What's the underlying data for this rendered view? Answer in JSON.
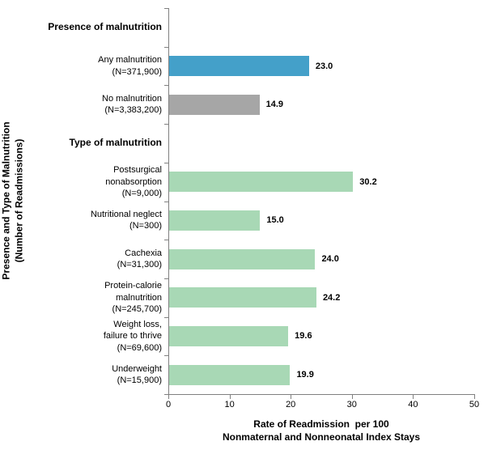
{
  "chart_data": {
    "type": "bar",
    "orientation": "horizontal",
    "xlabel": "Rate of Readmission  per 100\nNonmaternal and Nonneonatal Index Stays",
    "ylabel": "Presence and Type of Malnutrition\n(Number of Readmissions)",
    "xlim": [
      0,
      50
    ],
    "xticks": [
      0,
      10,
      20,
      30,
      40,
      50
    ],
    "grid": false,
    "legend": false,
    "axis_color": "#808080",
    "bar_colors": {
      "any_malnutrition": "#44A0C9",
      "no_malnutrition": "#A6A6A6",
      "type_of_malnutrition": "#A8D8B5"
    },
    "rows": [
      {
        "kind": "section",
        "label": "Presence of malnutrition"
      },
      {
        "kind": "bar",
        "label": "Any malnutrition\n(N=371,900)",
        "value": 23.0,
        "value_label": "23.0",
        "color": "#44A0C9"
      },
      {
        "kind": "bar",
        "label": "No malnutrition\n(N=3,383,200)",
        "value": 14.9,
        "value_label": "14.9",
        "color": "#A6A6A6"
      },
      {
        "kind": "section",
        "label": "Type of malnutrition"
      },
      {
        "kind": "bar",
        "label": "Postsurgical\nnonabsorption\n(N=9,000)",
        "value": 30.2,
        "value_label": "30.2",
        "color": "#A8D8B5"
      },
      {
        "kind": "bar",
        "label": "Nutritional neglect\n(N=300)",
        "value": 15.0,
        "value_label": "15.0",
        "color": "#A8D8B5"
      },
      {
        "kind": "bar",
        "label": "Cachexia\n(N=31,300)",
        "value": 24.0,
        "value_label": "24.0",
        "color": "#A8D8B5"
      },
      {
        "kind": "bar",
        "label": "Protein-calorie\nmalnutrition\n(N=245,700)",
        "value": 24.2,
        "value_label": "24.2",
        "color": "#A8D8B5"
      },
      {
        "kind": "bar",
        "label": "Weight loss,\nfailure to thrive\n(N=69,600)",
        "value": 19.6,
        "value_label": "19.6",
        "color": "#A8D8B5"
      },
      {
        "kind": "bar",
        "label": "Underweight\n(N=15,900)",
        "value": 19.9,
        "value_label": "19.9",
        "color": "#A8D8B5"
      }
    ]
  }
}
